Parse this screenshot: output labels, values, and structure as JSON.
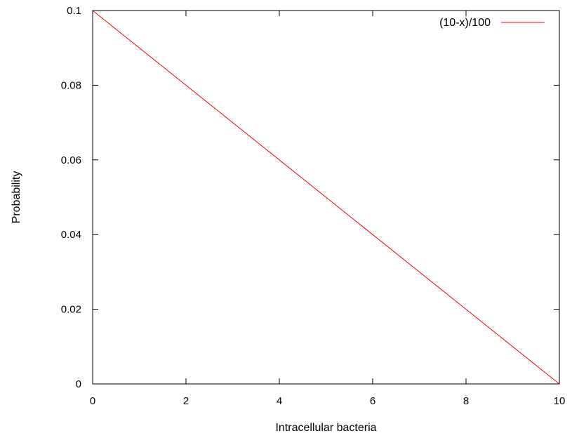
{
  "chart_data": {
    "type": "line",
    "title": "",
    "xlabel": "Intracellular bacteria",
    "ylabel": "Probability",
    "xlim": [
      0,
      10
    ],
    "ylim": [
      0,
      0.1
    ],
    "grid": false,
    "legend_position": "top-right",
    "x_ticks": [
      {
        "value": 0,
        "label": "0"
      },
      {
        "value": 2,
        "label": "2"
      },
      {
        "value": 4,
        "label": "4"
      },
      {
        "value": 6,
        "label": "6"
      },
      {
        "value": 8,
        "label": "8"
      },
      {
        "value": 10,
        "label": "10"
      }
    ],
    "y_ticks": [
      {
        "value": 0,
        "label": "0"
      },
      {
        "value": 0.02,
        "label": "0.02"
      },
      {
        "value": 0.04,
        "label": "0.04"
      },
      {
        "value": 0.06,
        "label": "0.06"
      },
      {
        "value": 0.08,
        "label": "0.08"
      },
      {
        "value": 0.1,
        "label": "0.1"
      }
    ],
    "series": [
      {
        "name": "(10-x)/100",
        "color": "#ff0000",
        "x": [
          0,
          2,
          4,
          6,
          8,
          10
        ],
        "y": [
          0.1,
          0.08,
          0.06,
          0.04,
          0.02,
          0
        ]
      }
    ]
  }
}
